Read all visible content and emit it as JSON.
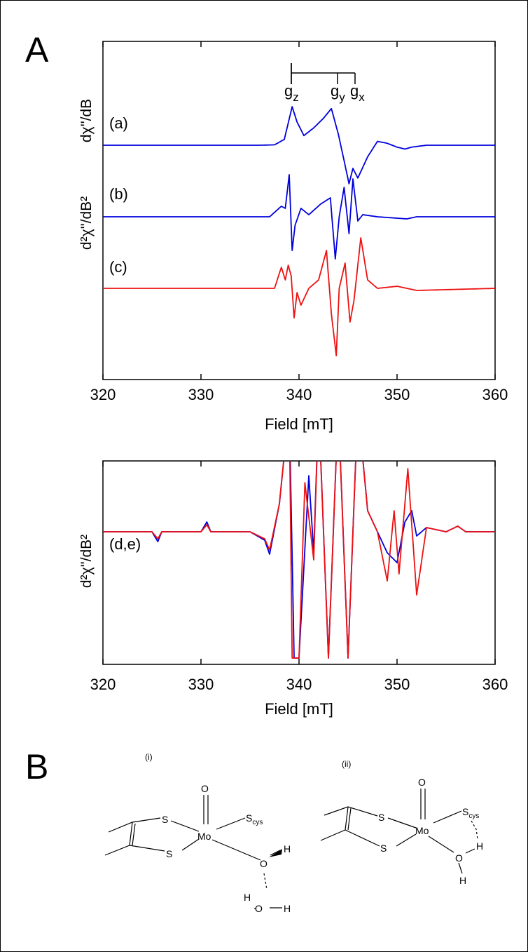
{
  "panel_a": {
    "letter": "A",
    "ylabel_top": "dχ''/dB",
    "ylabel_bottom": "d²χ''/dB²",
    "g_labels": [
      "g",
      "g",
      "g"
    ],
    "g_subscripts": [
      "z",
      "y",
      "x"
    ],
    "trace_labels": [
      "(a)",
      "(b)",
      "(c)"
    ],
    "xlabel": "Field [mT]",
    "xticks": [
      "320",
      "330",
      "340",
      "350",
      "360"
    ]
  },
  "panel_d": {
    "ylabel": "d²χ''/dB²",
    "trace_label": "(d,e)",
    "xlabel": "Field [mT]",
    "xticks": [
      "320",
      "330",
      "340",
      "350",
      "360"
    ]
  },
  "panel_b": {
    "letter": "B",
    "structure_i_label": "(i)",
    "structure_ii_label": "(ii)",
    "atoms": {
      "S": "S",
      "Mo": "Mo",
      "O": "O",
      "H": "H",
      "cys_S": "S",
      "cys_sub": "cys"
    }
  },
  "colors": {
    "blue": "#0000dd",
    "red": "#ee1111"
  },
  "chart_data": [
    {
      "type": "line",
      "xlabel": "Field [mT]",
      "ylabel": "dχ''/dB ; d²χ''/dB²",
      "xlim": [
        320,
        360
      ],
      "g_markers_mT": {
        "gz": 339.3,
        "gy": 344.0,
        "gx": 345.8
      },
      "series": [
        {
          "name": "(a)",
          "color": "#0000dd",
          "x": [
            320,
            336,
            337.5,
            338.5,
            339.3,
            339.8,
            340.5,
            341.5,
            342.5,
            343.3,
            344,
            344.6,
            345.1,
            345.5,
            346,
            347,
            348,
            349,
            350,
            350.8,
            351.5,
            353,
            360
          ],
          "values": [
            0,
            0,
            0.01,
            0.15,
            1.0,
            0.6,
            0.25,
            0.45,
            0.7,
            0.95,
            0.3,
            -0.4,
            -1.0,
            -0.6,
            -0.85,
            -0.3,
            0.1,
            0.05,
            -0.05,
            -0.1,
            -0.05,
            0,
            0
          ]
        },
        {
          "name": "(b)",
          "color": "#0000dd",
          "x": [
            320,
            337,
            338.2,
            338.6,
            339,
            339.3,
            339.6,
            340.2,
            341,
            342.2,
            343.2,
            343.7,
            344.1,
            344.6,
            345.1,
            345.5,
            346,
            346.5,
            348,
            351,
            352,
            360
          ],
          "values": [
            0,
            0,
            0.25,
            0.2,
            1.0,
            -0.8,
            -0.2,
            0.2,
            0.05,
            0.3,
            0.45,
            -1.0,
            0.0,
            0.7,
            -0.4,
            0.9,
            -0.1,
            0.05,
            0,
            -0.05,
            0,
            0
          ]
        },
        {
          "name": "(c)",
          "color": "#ee1111",
          "x": [
            320,
            337.5,
            338.2,
            338.6,
            338.9,
            339.2,
            339.5,
            339.8,
            340.2,
            341,
            342,
            342.8,
            343.3,
            343.8,
            344.1,
            344.7,
            345.2,
            345.6,
            346.3,
            347,
            348,
            350,
            352,
            360
          ],
          "values": [
            0,
            0,
            0.5,
            0.2,
            0.55,
            0.3,
            -0.7,
            -0.1,
            -0.4,
            0,
            0.2,
            0.9,
            -0.6,
            -1.6,
            0.0,
            0.6,
            -0.8,
            -0.3,
            1.2,
            0.2,
            0,
            0.05,
            -0.05,
            0
          ]
        }
      ]
    },
    {
      "type": "line",
      "xlabel": "Field [mT]",
      "ylabel": "d²χ''/dB²",
      "xlim": [
        320,
        360
      ],
      "series": [
        {
          "name": "(d,e)",
          "color": "#0000dd",
          "x": [
            320,
            325,
            325.6,
            326,
            330,
            330.6,
            331,
            335,
            336.5,
            337,
            338,
            339,
            339.5,
            340,
            341,
            341.5,
            342,
            343,
            344,
            345,
            346,
            347,
            348,
            349,
            350,
            350.8,
            351.5,
            352,
            353,
            355,
            356.2,
            357,
            360
          ],
          "values": [
            0,
            0,
            -0.7,
            0,
            0,
            0.7,
            0,
            0,
            -0.6,
            -1.6,
            2,
            9,
            -9,
            -9,
            4,
            -1.5,
            9,
            -9,
            9,
            -9,
            9,
            1.5,
            0,
            -1.5,
            -2.2,
            0.7,
            1.5,
            -0.3,
            0.3,
            0,
            0.4,
            0,
            0
          ]
        },
        {
          "name": "(d,e)",
          "color": "#ee1111",
          "x": [
            320,
            325,
            325.6,
            326,
            330,
            330.6,
            331,
            335,
            336.5,
            337,
            338,
            339,
            339.3,
            340,
            340.6,
            341.5,
            342,
            343,
            344,
            345,
            346,
            347,
            348,
            349,
            349.7,
            350.2,
            351.1,
            352,
            353,
            355,
            356.2,
            357,
            360
          ],
          "values": [
            0,
            0,
            -0.5,
            0,
            0,
            0.5,
            0,
            0,
            -0.5,
            -1.3,
            2,
            9,
            -9,
            -9,
            3.5,
            -2,
            9,
            -9,
            9,
            -9,
            9,
            1.5,
            0,
            -3.5,
            1.5,
            -3,
            4.5,
            -4.5,
            0.3,
            0,
            0.4,
            0,
            0
          ]
        }
      ]
    }
  ]
}
